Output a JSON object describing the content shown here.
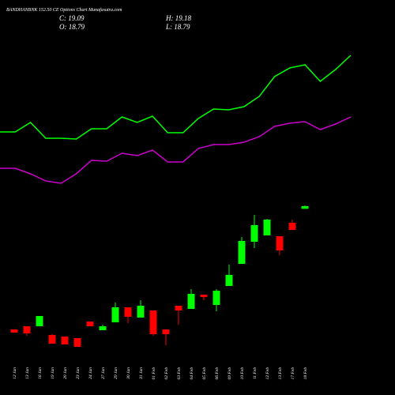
{
  "chart_data": {
    "type": "candlestick",
    "title": "BANDHANBNK 152.50 CE Options Chart Munafasutra.com",
    "header": {
      "close": "C: 19.09",
      "high": "H: 19.18",
      "open": "O: 18.79",
      "low": "L: 18.79"
    },
    "categories": [
      "12 Jan",
      "13 Jan",
      "16 Jan",
      "19 Jan",
      "20 Jan",
      "23 Jan",
      "24 Jan",
      "27 Jan",
      "29 Jan",
      "30 Jan",
      "31 Jan",
      "01 Feb",
      "02 Feb",
      "03 Feb",
      "04 Feb",
      "05 Feb",
      "06 Feb",
      "09 Feb",
      "10 Feb",
      "11 Feb",
      "12 Feb",
      "13 Feb",
      "17 Feb",
      "18 Feb"
    ],
    "open": [
      5.05,
      5.41,
      5.41,
      4.42,
      4.24,
      4.06,
      5.95,
      4.96,
      5.86,
      7.57,
      6.4,
      7.21,
      5.05,
      7.75,
      7.39,
      9.01,
      7.84,
      10.0,
      12.52,
      15.04,
      15.76,
      15.67,
      17.2,
      18.79
    ],
    "high": [
      5.05,
      5.41,
      6.58,
      4.51,
      4.24,
      4.06,
      5.95,
      5.59,
      8.11,
      7.57,
      8.38,
      7.21,
      5.05,
      7.75,
      9.64,
      9.01,
      9.64,
      12.43,
      15.58,
      18.1,
      17.65,
      15.67,
      17.56,
      19.18
    ],
    "low": [
      4.69,
      4.33,
      5.41,
      3.43,
      3.34,
      3.07,
      5.41,
      4.96,
      5.86,
      5.77,
      6.4,
      4.33,
      3.25,
      5.59,
      7.39,
      8.38,
      7.12,
      10.0,
      12.52,
      14.32,
      15.76,
      13.51,
      16.39,
      18.79
    ],
    "close": [
      4.69,
      4.6,
      6.58,
      3.43,
      3.34,
      3.07,
      5.41,
      5.41,
      7.57,
      6.49,
      7.75,
      4.51,
      4.51,
      7.21,
      9.1,
      8.74,
      9.46,
      11.26,
      15.13,
      16.93,
      17.56,
      14.05,
      16.39,
      19.09
    ],
    "up_color": "#00ff00",
    "down_color": "#ff0000",
    "series": [
      {
        "color": "#00ff00",
        "values": [
          27.55,
          27.55,
          28.63,
          26.83,
          26.83,
          26.74,
          27.91,
          27.91,
          29.26,
          28.63,
          29.35,
          27.46,
          27.46,
          29.08,
          30.16,
          30.07,
          30.43,
          31.6,
          33.85,
          34.84,
          35.2,
          33.31,
          34.66,
          36.28
        ]
      },
      {
        "color": "#cc00cc",
        "values": [
          23.41,
          23.41,
          22.78,
          21.97,
          21.7,
          22.78,
          24.31,
          24.22,
          25.12,
          24.85,
          25.48,
          24.13,
          24.13,
          25.66,
          26.11,
          26.11,
          26.38,
          27.01,
          28.18,
          28.54,
          28.72,
          27.82,
          28.45,
          29.26
        ]
      }
    ],
    "ylim": [
      1.18,
      42.58
    ]
  }
}
